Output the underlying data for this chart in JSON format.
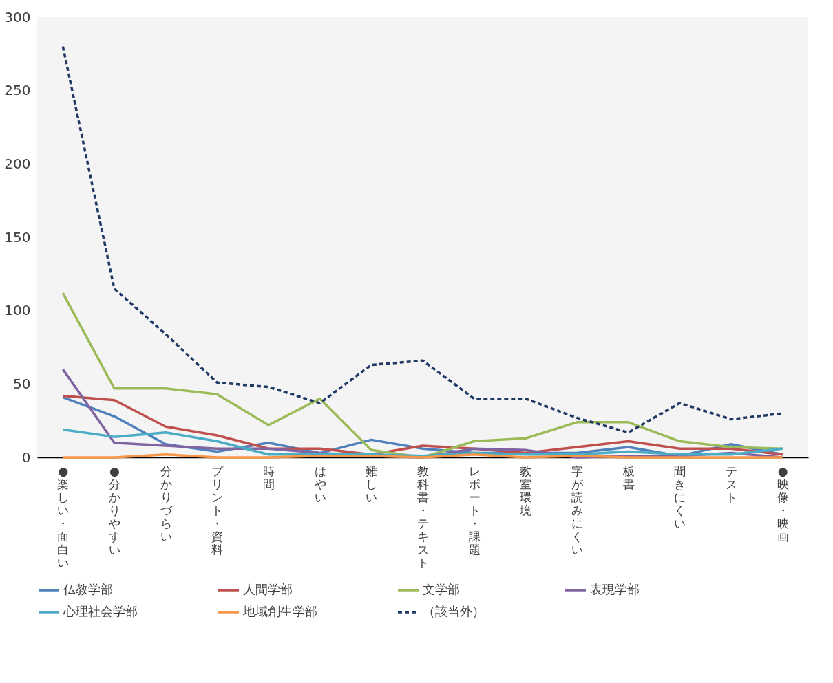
{
  "chart_data": {
    "type": "line",
    "categories": [
      "●楽しい・面白い",
      "●分かりやすい",
      "分かりづらい",
      "プリント・資料",
      "時間",
      "はやい",
      "難しい",
      "教科書・テキスト",
      "レポート・課題",
      "教室環境",
      "字が読みにくい",
      "板書",
      "聞きにくい",
      "テスト",
      "●映像・映画"
    ],
    "series": [
      {
        "name": "仏教学部",
        "color": "#4f81bd",
        "values": [
          41,
          28,
          9,
          4,
          10,
          3,
          12,
          6,
          3,
          3,
          3,
          7,
          1,
          9,
          2
        ]
      },
      {
        "name": "人間学部",
        "color": "#c0504d",
        "values": [
          42,
          39,
          21,
          15,
          6,
          6,
          2,
          8,
          6,
          3,
          7,
          11,
          6,
          6,
          2
        ]
      },
      {
        "name": "文学部",
        "color": "#9bbb59",
        "values": [
          112,
          47,
          47,
          43,
          22,
          40,
          5,
          0,
          11,
          13,
          24,
          24,
          11,
          7,
          6
        ]
      },
      {
        "name": "表現学部",
        "color": "#8064a2",
        "values": [
          60,
          10,
          8,
          6,
          6,
          3,
          1,
          0,
          6,
          5,
          0,
          1,
          1,
          3,
          0
        ]
      },
      {
        "name": "心理社会学部",
        "color": "#4bacc6",
        "values": [
          19,
          14,
          17,
          11,
          2,
          2,
          2,
          1,
          3,
          2,
          2,
          4,
          2,
          2,
          6
        ]
      },
      {
        "name": "地域創生学部",
        "color": "#f79646",
        "values": [
          0,
          0,
          2,
          0,
          0,
          1,
          1,
          0,
          2,
          0,
          1,
          0,
          0,
          0,
          0
        ]
      },
      {
        "name": "（該当外）",
        "color": "#1f3864",
        "line_style": "dashed",
        "values": [
          280,
          115,
          84,
          51,
          48,
          37,
          63,
          66,
          40,
          40,
          27,
          17,
          37,
          26,
          30
        ]
      }
    ],
    "ylim": [
      0,
      300
    ],
    "yticks": [
      0,
      50,
      100,
      150,
      200,
      250,
      300
    ],
    "grid": false,
    "legend": "bottom",
    "marker": "none"
  }
}
